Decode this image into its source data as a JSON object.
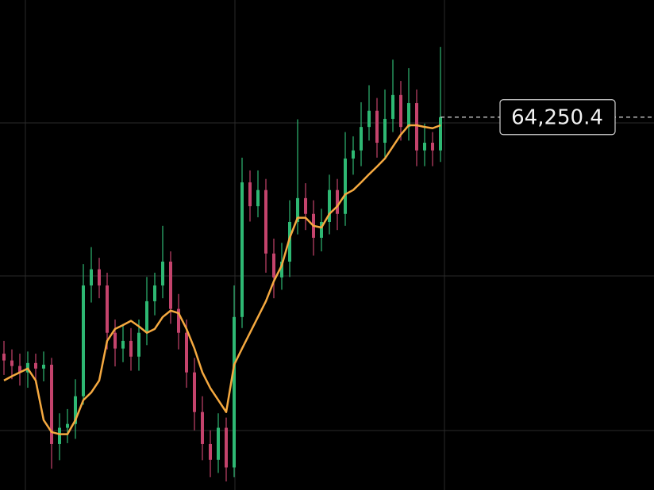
{
  "chart_data": {
    "type": "candlestick",
    "ylim": [
      55500,
      67000
    ],
    "up_color": "#2eb873",
    "down_color": "#c4436c",
    "open": [
      58700,
      58540,
      58410,
      58260,
      58480,
      58350,
      58440,
      56580,
      56960,
      57050,
      57700,
      60300,
      60680,
      60300,
      59190,
      58820,
      59000,
      58630,
      59190,
      59930,
      60300,
      60860,
      59750,
      59190,
      58260,
      57330,
      56580,
      56210,
      56960,
      56030,
      59560,
      62720,
      62160,
      62540,
      61050,
      60490,
      60860,
      61790,
      62350,
      61980,
      61420,
      61790,
      62540,
      61980,
      63280,
      63470,
      64020,
      64400,
      63650,
      64210,
      64770,
      64020,
      64580,
      63470,
      63650,
      63470
    ],
    "high": [
      59000,
      58800,
      58700,
      58750,
      58700,
      58750,
      58600,
      57300,
      57400,
      58100,
      60800,
      61200,
      60950,
      60600,
      59500,
      59400,
      59300,
      59500,
      60500,
      60600,
      61700,
      61100,
      60100,
      59500,
      58600,
      57700,
      56900,
      57300,
      57200,
      60300,
      63300,
      63000,
      63000,
      62800,
      61400,
      61300,
      62300,
      64200,
      62700,
      62300,
      62100,
      62900,
      62800,
      63900,
      63800,
      64600,
      65000,
      64700,
      64900,
      65600,
      65100,
      65400,
      64900,
      64100,
      63900,
      65900
    ],
    "low": [
      58200,
      58100,
      57950,
      57900,
      58000,
      58050,
      56000,
      56200,
      56600,
      56700,
      57500,
      59900,
      60000,
      58800,
      58400,
      58500,
      58300,
      58300,
      58900,
      59600,
      60000,
      59400,
      58800,
      57900,
      56900,
      56200,
      55800,
      55900,
      55700,
      55800,
      59300,
      61800,
      61900,
      60600,
      60000,
      60200,
      60500,
      61500,
      61600,
      61000,
      61100,
      61500,
      61600,
      61700,
      62900,
      63100,
      63700,
      63300,
      63300,
      63900,
      63700,
      63700,
      63100,
      63100,
      63100,
      63200
    ],
    "close": [
      58540,
      58410,
      58260,
      58480,
      58350,
      58440,
      56580,
      56960,
      57050,
      57700,
      60300,
      60680,
      60300,
      59190,
      58820,
      59000,
      58630,
      59190,
      59930,
      60300,
      60860,
      59750,
      59190,
      58260,
      57330,
      56580,
      56210,
      56960,
      56030,
      59560,
      62720,
      62160,
      62540,
      61050,
      60490,
      60860,
      61790,
      62350,
      61980,
      61420,
      61790,
      62540,
      61980,
      63280,
      63470,
      64020,
      64400,
      63650,
      64210,
      64770,
      64020,
      64580,
      63470,
      63650,
      63470,
      64250
    ],
    "ma": {
      "color": "#f5a940",
      "values": [
        58070,
        58170,
        58260,
        58350,
        58070,
        57140,
        56860,
        56810,
        56810,
        57140,
        57610,
        57790,
        58070,
        59000,
        59280,
        59370,
        59470,
        59340,
        59190,
        59280,
        59560,
        59710,
        59650,
        59280,
        58820,
        58260,
        57890,
        57610,
        57330,
        58440,
        58820,
        59190,
        59560,
        59930,
        60400,
        60770,
        61420,
        61890,
        61890,
        61700,
        61660,
        61980,
        62160,
        62440,
        62540,
        62720,
        62910,
        63090,
        63280,
        63560,
        63840,
        64060,
        64060,
        64020,
        63990,
        64060
      ]
    },
    "last_price": {
      "value": 64250.4,
      "label": "64,250.4"
    }
  }
}
